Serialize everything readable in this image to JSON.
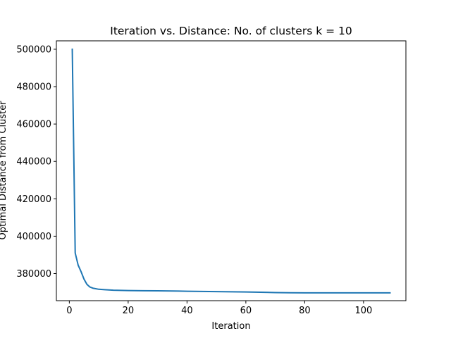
{
  "chart_data": {
    "type": "line",
    "title": "Iteration vs. Distance: No. of clusters k = 10",
    "xlabel": "Iteration",
    "ylabel": "Optimal Distance from Cluster",
    "xlim": [
      -4.4,
      114.4
    ],
    "ylim": [
      365500,
      504500
    ],
    "xticks": [
      0,
      20,
      40,
      60,
      80,
      100
    ],
    "yticks": [
      380000,
      400000,
      420000,
      440000,
      460000,
      480000,
      500000
    ],
    "grid": false,
    "series": [
      {
        "color": "#1f77b4",
        "x": [
          1,
          2,
          3,
          4,
          5,
          6,
          7,
          8,
          10,
          12,
          15,
          20,
          25,
          30,
          35,
          40,
          50,
          60,
          65,
          70,
          75,
          80,
          90,
          100,
          109
        ],
        "y": [
          500000,
          391000,
          384500,
          381000,
          377000,
          374200,
          372800,
          372200,
          371600,
          371400,
          371100,
          370900,
          370800,
          370750,
          370700,
          370550,
          370350,
          370150,
          370000,
          369850,
          369750,
          369700,
          369700,
          369700,
          369700
        ]
      }
    ]
  }
}
